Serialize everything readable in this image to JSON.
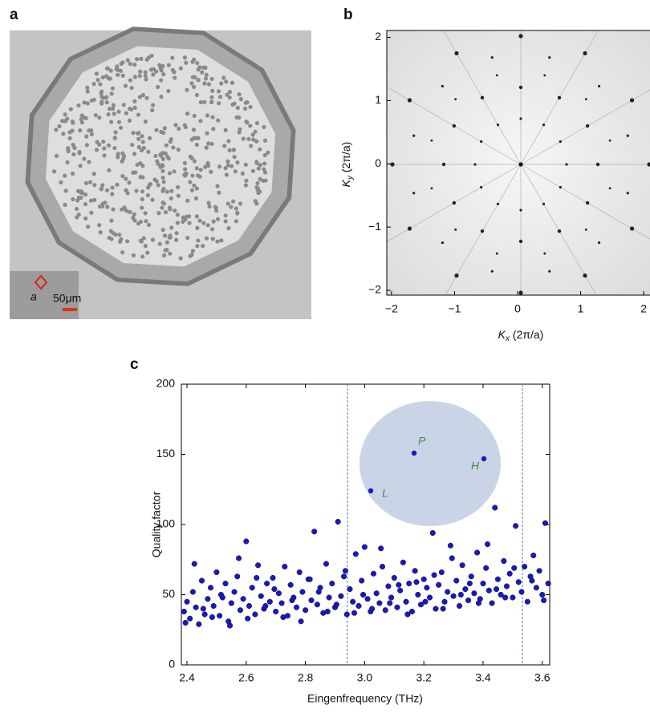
{
  "panel_a": {
    "panel_label": "a",
    "inset_label": "a",
    "scale_bar": "50μm"
  },
  "chart_data": [
    {
      "type": "image",
      "panel_label": "b",
      "xlabel": {
        "symbol": "K",
        "subscript": "x",
        "unit": "(2π/a)"
      },
      "ylabel": {
        "symbol": "K",
        "subscript": "y",
        "unit": "(2π/a)"
      },
      "xlim": [
        -2.075,
        2.1
      ],
      "ylim": [
        -2.076,
        2.108
      ],
      "xticks": [
        {
          "value": -2,
          "label": "−2"
        },
        {
          "value": -1,
          "label": "−1"
        },
        0,
        1,
        2
      ],
      "yticks": [
        {
          "value": -2,
          "label": "−2"
        },
        {
          "value": -1,
          "label": "−1"
        },
        0,
        1,
        2
      ]
    },
    {
      "type": "scatter",
      "panel_label": "c",
      "xlabel": "Eingenfrequency (THz)",
      "ylabel": "Quality factor",
      "color": "#1a1ab4",
      "xlim": [
        2.381,
        3.625
      ],
      "ylim": [
        0,
        200
      ],
      "xticks": [
        2.4,
        2.6,
        2.8,
        {
          "value": 3,
          "label": "3.0"
        },
        3.2,
        3.4,
        3.6
      ],
      "yticks": [
        0,
        50,
        100,
        150,
        200
      ],
      "vlines": [
        2.942,
        3.533
      ],
      "inset_labels": [
        "P",
        "H",
        "L"
      ],
      "x": [
        2.39,
        2.4,
        2.41,
        2.42,
        2.43,
        2.44,
        2.45,
        2.46,
        2.47,
        2.48,
        2.49,
        2.5,
        2.51,
        2.52,
        2.53,
        2.54,
        2.55,
        2.56,
        2.57,
        2.58,
        2.59,
        2.6,
        2.61,
        2.62,
        2.63,
        2.64,
        2.65,
        2.66,
        2.67,
        2.68,
        2.69,
        2.7,
        2.71,
        2.72,
        2.73,
        2.74,
        2.75,
        2.76,
        2.77,
        2.78,
        2.79,
        2.8,
        2.81,
        2.82,
        2.83,
        2.84,
        2.85,
        2.86,
        2.87,
        2.88,
        2.89,
        2.9,
        2.91,
        2.92,
        2.93,
        2.94,
        2.95,
        2.96,
        2.97,
        2.98,
        2.99,
        3.0,
        3.01,
        3.02,
        3.03,
        3.04,
        3.05,
        3.06,
        3.07,
        3.08,
        3.09,
        3.1,
        3.11,
        3.12,
        3.13,
        3.14,
        3.15,
        3.16,
        3.17,
        3.18,
        3.19,
        3.2,
        3.21,
        3.22,
        3.23,
        3.24,
        3.25,
        3.26,
        3.27,
        3.28,
        3.29,
        3.3,
        3.31,
        3.32,
        3.33,
        3.34,
        3.35,
        3.36,
        3.37,
        3.38,
        3.39,
        3.4,
        3.41,
        3.42,
        3.43,
        3.44,
        3.45,
        3.46,
        3.47,
        3.48,
        3.49,
        3.5,
        3.51,
        3.52,
        3.53,
        3.54,
        3.55,
        3.56,
        3.57,
        3.58,
        3.59,
        3.6,
        3.61,
        3.62,
        2.395,
        2.425,
        2.455,
        2.485,
        2.515,
        2.545,
        2.575,
        2.605,
        2.635,
        2.665,
        2.695,
        2.725,
        2.755,
        2.785,
        2.815,
        2.845,
        2.875,
        2.905,
        2.935,
        2.965,
        2.995,
        3.025,
        3.055,
        3.085,
        3.115,
        3.145,
        3.175,
        3.205,
        3.235,
        3.265,
        3.295,
        3.325,
        3.355,
        3.385,
        3.415,
        3.445,
        3.475,
        3.505,
        3.565,
        3.605
      ],
      "values": [
        38,
        45,
        33,
        52,
        41,
        29,
        60,
        36,
        47,
        55,
        42,
        66,
        35,
        48,
        58,
        31,
        44,
        52,
        63,
        39,
        47,
        88,
        42,
        55,
        36,
        71,
        49,
        40,
        58,
        45,
        62,
        38,
        51,
        44,
        70,
        35,
        57,
        48,
        41,
        66,
        52,
        39,
        61,
        46,
        95,
        43,
        55,
        37,
        72,
        48,
        58,
        41,
        102,
        49,
        63,
        36,
        54,
        45,
        79,
        42,
        60,
        84,
        47,
        38,
        65,
        51,
        44,
        70,
        39,
        56,
        48,
        62,
        41,
        53,
        73,
        45,
        58,
        38,
        67,
        50,
        43,
        61,
        55,
        48,
        94,
        40,
        57,
        66,
        45,
        52,
        85,
        49,
        60,
        42,
        71,
        54,
        46,
        63,
        51,
        80,
        47,
        58,
        69,
        53,
        44,
        112,
        61,
        50,
        74,
        56,
        65,
        48,
        99,
        59,
        52,
        70,
        45,
        63,
        78,
        55,
        67,
        50,
        101,
        58,
        30,
        72,
        40,
        34,
        50,
        28,
        76,
        33,
        62,
        42,
        54,
        34,
        46,
        31,
        61,
        52,
        38,
        43,
        67,
        37,
        50,
        40,
        83,
        44,
        57,
        36,
        59,
        45,
        64,
        40,
        76,
        50,
        58,
        44,
        86,
        54,
        48,
        69,
        60,
        46
      ]
    }
  ]
}
